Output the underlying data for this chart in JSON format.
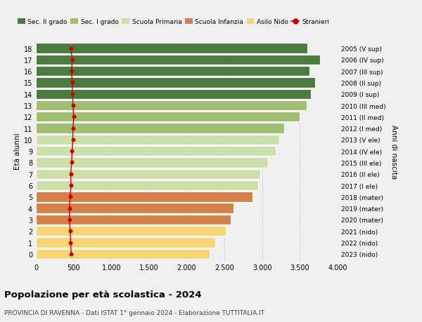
{
  "ages": [
    0,
    1,
    2,
    3,
    4,
    5,
    6,
    7,
    8,
    9,
    10,
    11,
    12,
    13,
    14,
    15,
    16,
    17,
    18
  ],
  "bar_values": [
    2300,
    2380,
    2520,
    2580,
    2620,
    2870,
    2950,
    2970,
    3080,
    3180,
    3230,
    3290,
    3500,
    3590,
    3650,
    3700,
    3630,
    3770,
    3600
  ],
  "stranieri_values": [
    470,
    460,
    455,
    445,
    445,
    455,
    465,
    462,
    475,
    480,
    490,
    492,
    502,
    492,
    485,
    482,
    472,
    483,
    462
  ],
  "bar_colors": [
    "#f5d575",
    "#f5d575",
    "#f5d575",
    "#d4824a",
    "#d4824a",
    "#d4824a",
    "#cce0aa",
    "#cce0aa",
    "#cce0aa",
    "#cce0aa",
    "#cce0aa",
    "#a0be70",
    "#a0be70",
    "#a0be70",
    "#4a7c40",
    "#4a7c40",
    "#4a7c40",
    "#4a7c40",
    "#4a7c40"
  ],
  "right_labels": [
    "2023 (nido)",
    "2022 (nido)",
    "2021 (nido)",
    "2020 (mater)",
    "2019 (mater)",
    "2018 (mater)",
    "2017 (I ele)",
    "2016 (II ele)",
    "2015 (III ele)",
    "2014 (IV ele)",
    "2013 (V ele)",
    "2012 (I med)",
    "2011 (II med)",
    "2010 (III med)",
    "2009 (I sup)",
    "2008 (II sup)",
    "2007 (III sup)",
    "2006 (IV sup)",
    "2005 (V sup)"
  ],
  "legend_labels": [
    "Sec. II grado",
    "Sec. I grado",
    "Scuola Primaria",
    "Scuola Infanzia",
    "Asilo Nido",
    "Stranieri"
  ],
  "legend_colors": [
    "#4a7c40",
    "#a0be70",
    "#cce0aa",
    "#d4824a",
    "#f5d575",
    "#cc0000"
  ],
  "ylabel_left": "Età alunni",
  "ylabel_right": "Anni di nascita",
  "title": "Popolazione per età scolastica - 2024",
  "subtitle": "PROVINCIA DI RAVENNA - Dati ISTAT 1° gennaio 2024 - Elaborazione TUTTITALIA.IT",
  "xlim": [
    0,
    4000
  ],
  "xticks": [
    0,
    500,
    1000,
    1500,
    2000,
    2500,
    3000,
    3500,
    4000
  ],
  "background_color": "#f0f0f0",
  "bar_edge_color": "white",
  "grid_color": "#cccccc"
}
